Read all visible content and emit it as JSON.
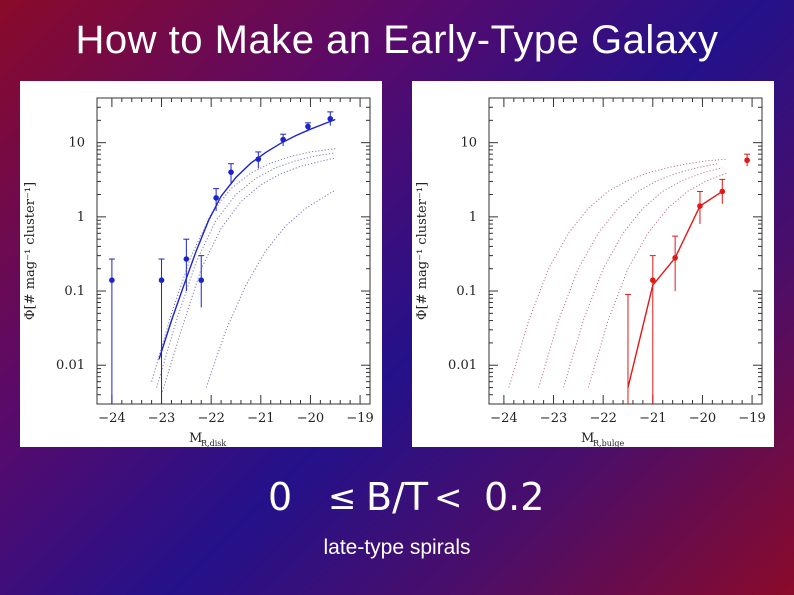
{
  "slide": {
    "title": "How to Make an Early-Type Galaxy",
    "equation": {
      "lower": "0",
      "leq": "≤",
      "middle": "B/T",
      "lt": "<",
      "upper": "0.2"
    },
    "caption": "late-type spirals"
  },
  "colors": {
    "left_series": "#1c24c8",
    "right_series": "#e01818",
    "model_curves": "#8a8aa8"
  },
  "chart_data": [
    {
      "type": "line",
      "title": "",
      "ylabel": "Φ[# mag⁻¹ cluster⁻¹]",
      "xlabel_main": "M",
      "xlabel_sub": "R,disk",
      "x_ticks": [
        "−24",
        "−23",
        "−22",
        "−21",
        "−20",
        "−19"
      ],
      "y_ticks": [
        "10",
        "1",
        "0.1",
        "0.01"
      ],
      "y_scale": "log",
      "xlim": [
        -24.3,
        -18.8
      ],
      "ylim": [
        0.003,
        40
      ],
      "series": [
        {
          "x": [
            -24.0,
            -23.0,
            -22.5,
            -22.2,
            -21.9,
            -21.6,
            -21.05,
            -20.55,
            -20.05,
            -19.6
          ],
          "y": [
            0.14,
            0.14,
            0.27,
            0.14,
            1.8,
            4.0,
            6.0,
            11.0,
            16.5,
            21.0
          ],
          "err_low": [
            0.003,
            0.003,
            0.1,
            0.06,
            1.2,
            2.8,
            4.5,
            9.0,
            14.5,
            17.0
          ],
          "err_high": [
            0.27,
            0.27,
            0.5,
            0.3,
            2.4,
            5.2,
            7.5,
            13.0,
            18.5,
            26.0
          ],
          "fit": {
            "x": [
              -23.05,
              -22.8,
              -22.55,
              -22.3,
              -22.05,
              -21.8,
              -21.5,
              -21.2,
              -20.9,
              -20.6,
              -20.3,
              -20.0,
              -19.7,
              -19.5
            ],
            "y": [
              0.012,
              0.04,
              0.12,
              0.35,
              0.9,
              1.9,
              3.4,
              5.3,
              7.4,
              9.8,
              12.4,
              15.2,
              18.2,
              20.5
            ]
          }
        }
      ],
      "model_curves": [
        {
          "x": [
            -23.0,
            -22.6,
            -22.2,
            -21.8,
            -21.4,
            -21.0,
            -20.6,
            -20.2,
            -19.8,
            -19.5
          ],
          "y": [
            0.004,
            0.03,
            0.2,
            0.7,
            1.6,
            2.7,
            3.8,
            4.8,
            5.6,
            6.2
          ]
        },
        {
          "x": [
            -23.1,
            -22.7,
            -22.3,
            -21.9,
            -21.5,
            -21.1,
            -20.7,
            -20.3,
            -19.9,
            -19.5
          ],
          "y": [
            0.005,
            0.04,
            0.25,
            0.9,
            2.0,
            3.3,
            4.6,
            5.7,
            6.6,
            7.3
          ]
        },
        {
          "x": [
            -23.2,
            -22.8,
            -22.4,
            -22.0,
            -21.6,
            -21.2,
            -20.8,
            -20.4,
            -20.0,
            -19.5
          ],
          "y": [
            0.006,
            0.05,
            0.3,
            1.1,
            2.4,
            3.9,
            5.3,
            6.5,
            7.5,
            8.3
          ]
        },
        {
          "x": [
            -22.1,
            -21.7,
            -21.3,
            -20.9,
            -20.5,
            -20.1,
            -19.7,
            -19.5
          ],
          "y": [
            0.005,
            0.03,
            0.12,
            0.35,
            0.75,
            1.3,
            1.9,
            2.3
          ]
        }
      ]
    },
    {
      "type": "line",
      "title": "",
      "ylabel": "Φ[# mag⁻¹ cluster⁻¹]",
      "xlabel_main": "M",
      "xlabel_sub": "R,bulge",
      "x_ticks": [
        "−24",
        "−23",
        "−22",
        "−21",
        "−20",
        "−19"
      ],
      "y_ticks": [
        "10",
        "1",
        "0.1",
        "0.01"
      ],
      "y_scale": "log",
      "xlim": [
        -24.3,
        -18.8
      ],
      "ylim": [
        0.003,
        40
      ],
      "series": [
        {
          "x": [
            -21.5,
            -21.0,
            -20.55,
            -20.05,
            -19.6,
            -19.1
          ],
          "y": [
            0.003,
            0.14,
            0.28,
            1.4,
            2.2,
            5.8
          ],
          "err_low": [
            0.003,
            0.003,
            0.1,
            0.8,
            1.5,
            4.8
          ],
          "err_high": [
            0.09,
            0.3,
            0.55,
            2.2,
            3.2,
            7.0
          ],
          "fit": {
            "x": [
              -21.5,
              -21.0,
              -20.55,
              -20.05,
              -19.6
            ],
            "y": [
              0.005,
              0.12,
              0.28,
              1.4,
              2.2
            ]
          }
        }
      ],
      "model_curves": [
        {
          "x": [
            -23.9,
            -23.5,
            -23.1,
            -22.7,
            -22.3,
            -21.9,
            -21.5,
            -21.1,
            -20.7,
            -20.3,
            -19.9,
            -19.5
          ],
          "y": [
            0.005,
            0.04,
            0.2,
            0.6,
            1.3,
            2.2,
            3.1,
            3.9,
            4.6,
            5.2,
            5.7,
            6.0
          ]
        },
        {
          "x": [
            -23.3,
            -22.9,
            -22.5,
            -22.1,
            -21.7,
            -21.3,
            -20.9,
            -20.5,
            -20.1,
            -19.7
          ],
          "y": [
            0.005,
            0.04,
            0.2,
            0.6,
            1.3,
            2.2,
            3.1,
            3.9,
            4.6,
            5.2
          ]
        },
        {
          "x": [
            -22.8,
            -22.4,
            -22.0,
            -21.6,
            -21.2,
            -20.8,
            -20.4,
            -20.0,
            -19.6
          ],
          "y": [
            0.005,
            0.04,
            0.2,
            0.6,
            1.3,
            2.2,
            3.1,
            3.9,
            4.6
          ]
        },
        {
          "x": [
            -22.3,
            -21.9,
            -21.5,
            -21.1,
            -20.7,
            -20.3,
            -19.9,
            -19.5
          ],
          "y": [
            0.005,
            0.04,
            0.2,
            0.6,
            1.3,
            2.2,
            3.1,
            3.9
          ]
        }
      ]
    }
  ]
}
